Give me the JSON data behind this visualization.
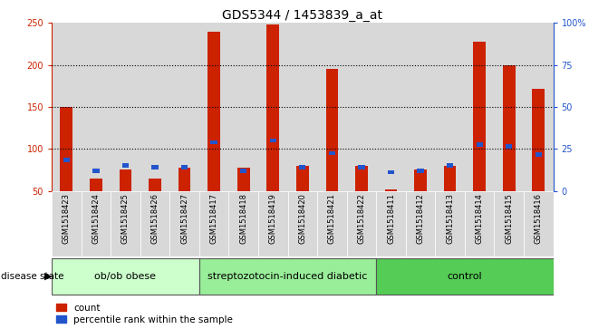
{
  "title": "GDS5344 / 1453839_a_at",
  "samples": [
    "GSM1518423",
    "GSM1518424",
    "GSM1518425",
    "GSM1518426",
    "GSM1518427",
    "GSM1518417",
    "GSM1518418",
    "GSM1518419",
    "GSM1518420",
    "GSM1518421",
    "GSM1518422",
    "GSM1518411",
    "GSM1518412",
    "GSM1518413",
    "GSM1518414",
    "GSM1518415",
    "GSM1518416"
  ],
  "count_values": [
    150,
    65,
    75,
    65,
    78,
    240,
    78,
    248,
    80,
    195,
    80,
    52,
    75,
    80,
    228,
    200,
    172
  ],
  "percentile_values": [
    87,
    74,
    80,
    78,
    78,
    108,
    74,
    110,
    78,
    95,
    78,
    72,
    74,
    80,
    105,
    103,
    93
  ],
  "bar_bottom": 50,
  "groups": [
    {
      "label": "ob/ob obese",
      "start": 0,
      "end": 5,
      "color": "#ccffcc"
    },
    {
      "label": "streptozotocin-induced diabetic",
      "start": 5,
      "end": 11,
      "color": "#99ee99"
    },
    {
      "label": "control",
      "start": 11,
      "end": 17,
      "color": "#55cc55"
    }
  ],
  "ylim_left": [
    50,
    250
  ],
  "ylim_right": [
    0,
    100
  ],
  "yticks_left": [
    50,
    100,
    150,
    200,
    250
  ],
  "yticks_right": [
    0,
    25,
    50,
    75,
    100
  ],
  "ytick_labels_right": [
    "0",
    "25",
    "50",
    "75",
    "100%"
  ],
  "bar_color_red": "#cc2200",
  "bar_color_blue": "#2255cc",
  "col_bg_color": "#d8d8d8",
  "plot_bg": "#ffffff",
  "title_fontsize": 10,
  "tick_fontsize": 7,
  "sample_fontsize": 6,
  "group_fontsize": 8,
  "legend_fontsize": 7.5
}
